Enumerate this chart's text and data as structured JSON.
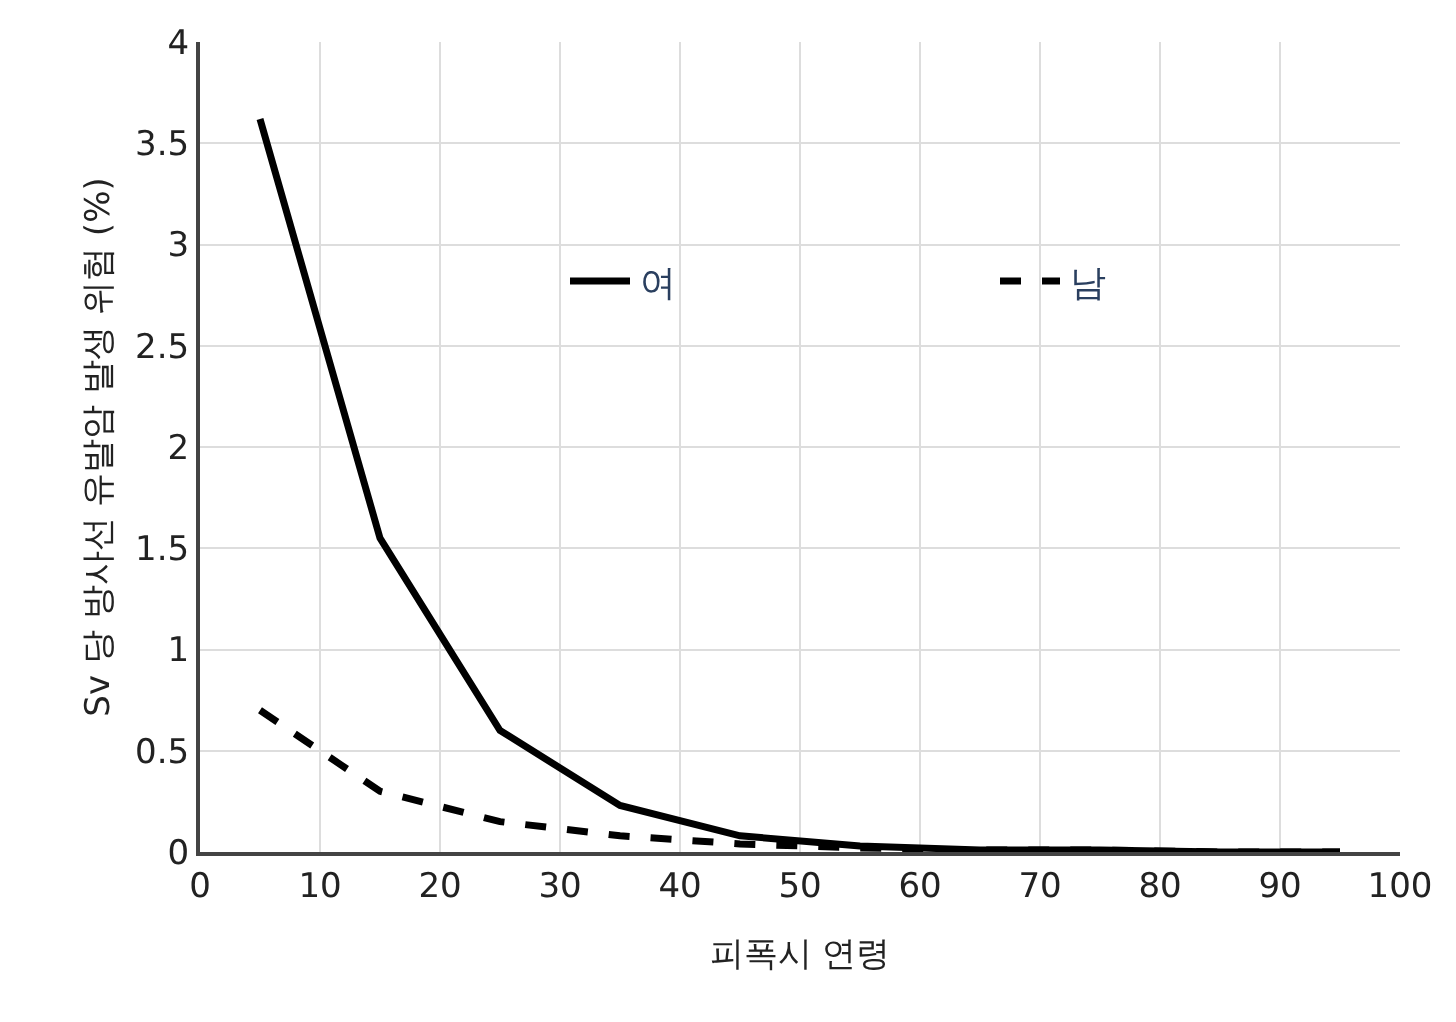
{
  "chart_data": {
    "type": "line",
    "xlabel": "피폭시 연령",
    "ylabel": "Sv 당 방사선 유발암 발생 위험 (%)",
    "x": [
      5,
      15,
      25,
      35,
      45,
      55,
      65,
      75,
      85,
      95
    ],
    "series": [
      {
        "name": "여",
        "color": "#000000",
        "line_style": "solid",
        "values": [
          3.62,
          1.55,
          0.6,
          0.23,
          0.08,
          0.03,
          0.01,
          0.01,
          0,
          0
        ]
      },
      {
        "name": "남",
        "color": "#000000",
        "line_style": "dashed",
        "values": [
          0.7,
          0.3,
          0.15,
          0.08,
          0.04,
          0.02,
          0.01,
          0.01,
          0,
          0
        ]
      }
    ],
    "xlim": [
      0,
      100
    ],
    "xticks": [
      0,
      10,
      20,
      30,
      40,
      50,
      60,
      70,
      80,
      90,
      100
    ],
    "ylim": [
      0,
      4
    ],
    "yticks": [
      0,
      0.5,
      1,
      1.5,
      2,
      2.5,
      3,
      3.5,
      4
    ],
    "grid": true,
    "legend": "top",
    "marker": "none"
  }
}
